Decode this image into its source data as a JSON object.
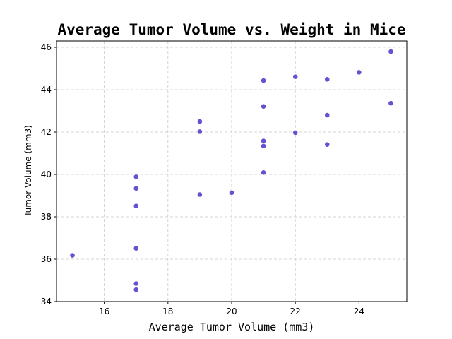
{
  "chart_data": {
    "type": "scatter",
    "title": "Average Tumor Volume vs. Weight in Mice",
    "xlabel": "Average Tumor Volume (mm3)",
    "ylabel": "Tumor Volume (mm3)",
    "xlim": [
      14.5,
      25.5
    ],
    "ylim": [
      34,
      46.3
    ],
    "xticks": [
      16,
      18,
      20,
      22,
      24
    ],
    "yticks": [
      34,
      36,
      38,
      40,
      42,
      44,
      46
    ],
    "grid": true,
    "marker_color": "#6a4fd1",
    "series": [
      {
        "points": [
          [
            15,
            36.18
          ],
          [
            17,
            39.89
          ],
          [
            17,
            39.34
          ],
          [
            17,
            38.51
          ],
          [
            17,
            36.51
          ],
          [
            17,
            34.85
          ],
          [
            17,
            34.56
          ],
          [
            19,
            42.5
          ],
          [
            19,
            42.02
          ],
          [
            19,
            39.05
          ],
          [
            20,
            39.14
          ],
          [
            21,
            44.43
          ],
          [
            21,
            43.21
          ],
          [
            21,
            41.58
          ],
          [
            21,
            41.34
          ],
          [
            21,
            40.09
          ],
          [
            22,
            44.61
          ],
          [
            22,
            41.97
          ],
          [
            23,
            44.49
          ],
          [
            23,
            42.8
          ],
          [
            23,
            41.41
          ],
          [
            24,
            44.82
          ],
          [
            25,
            45.8
          ],
          [
            25,
            43.36
          ]
        ]
      }
    ]
  }
}
